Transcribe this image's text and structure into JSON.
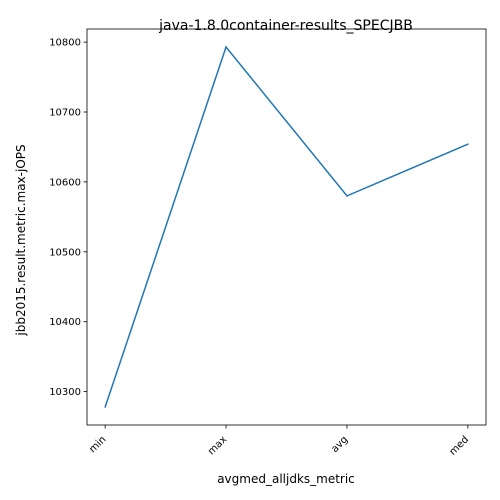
{
  "chart_data": {
    "type": "line",
    "title": "java-1.8.0container-results_SPECJBB",
    "xlabel": "avgmed_alljdks_metric",
    "ylabel": "jbb2015.result.metric.max-jOPS",
    "categories": [
      "min",
      "max",
      "avg",
      "med"
    ],
    "series": [
      {
        "values": [
          10278,
          10793,
          10580,
          10654
        ]
      }
    ],
    "ylim": [
      10252.25,
      10818.75
    ],
    "yticks": [
      10300,
      10400,
      10500,
      10600,
      10700,
      10800
    ],
    "grid": false,
    "legend": "none",
    "line_color": "#1f77b4"
  }
}
